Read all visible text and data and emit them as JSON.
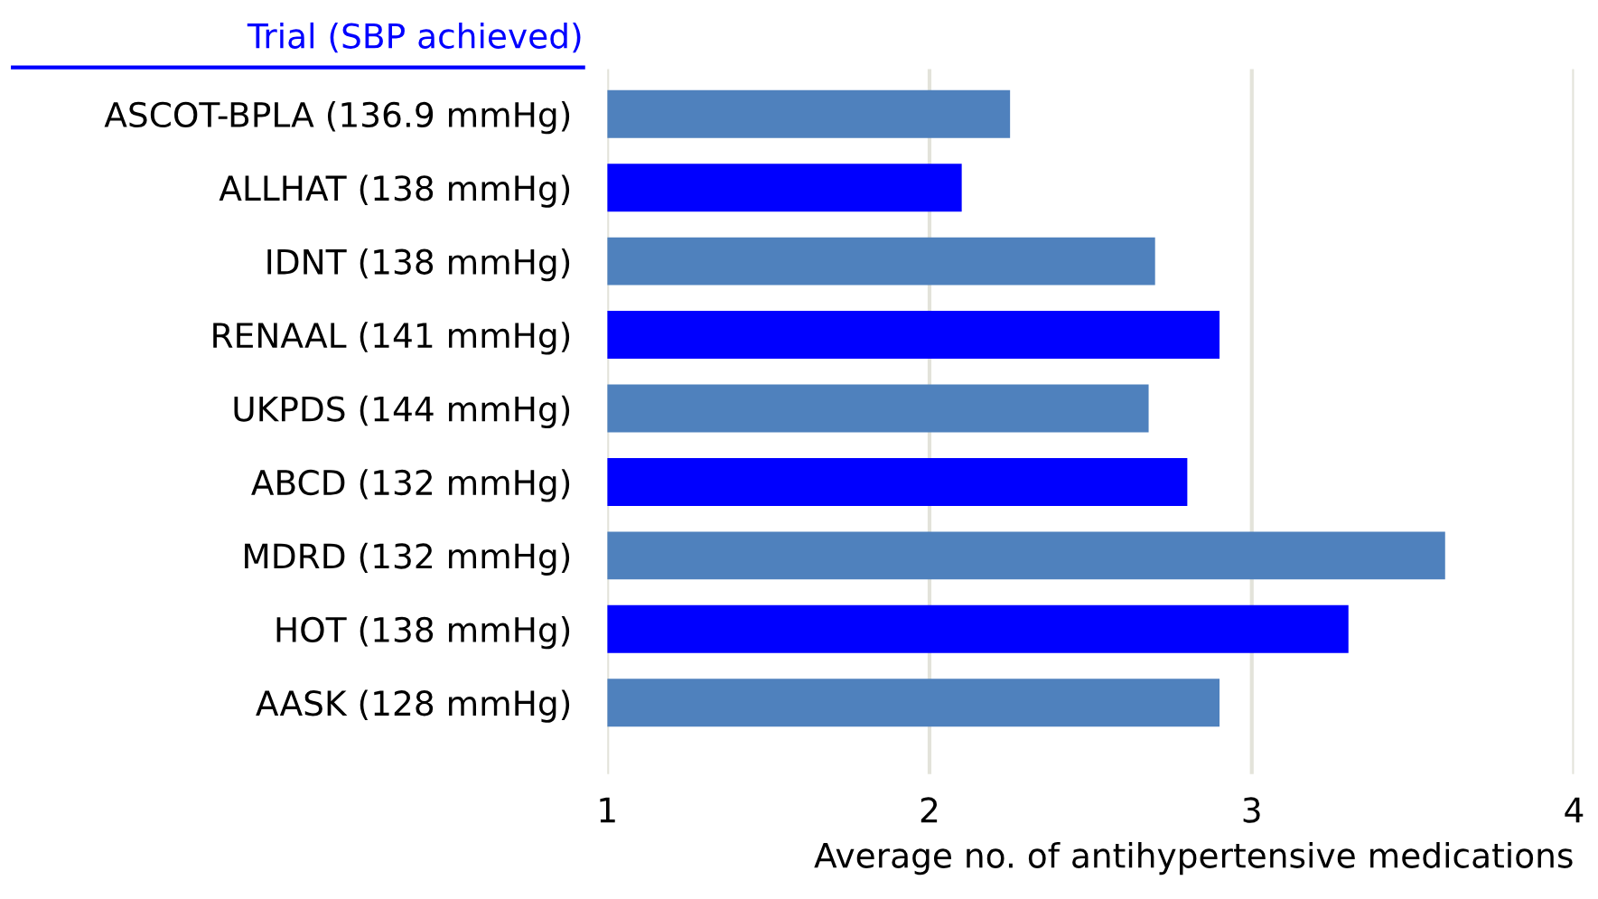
{
  "chart_data": {
    "type": "bar",
    "orientation": "horizontal",
    "ylabel": "Trial (SBP achieved)",
    "xlabel": "Average no. of antihypertensive medications",
    "categories": [
      "ASCOT-BPLA (136.9 mmHg)",
      "ALLHAT (138 mmHg)",
      "IDNT (138 mmHg)",
      "RENAAL (141 mmHg)",
      "UKPDS (144 mmHg)",
      "ABCD (132 mmHg)",
      "MDRD (132 mmHg)",
      "HOT (138 mmHg)",
      "AASK (128 mmHg)"
    ],
    "values": [
      2.25,
      2.1,
      2.7,
      2.9,
      2.68,
      2.8,
      3.6,
      3.3,
      2.9
    ],
    "colors": [
      "#4f81bd",
      "#0000ff",
      "#4f81bd",
      "#0000ff",
      "#4f81bd",
      "#0000ff",
      "#4f81bd",
      "#0000ff",
      "#4f81bd"
    ],
    "xlim": [
      1,
      4
    ],
    "xticks": [
      1,
      2,
      3,
      4
    ],
    "grid": "x"
  }
}
